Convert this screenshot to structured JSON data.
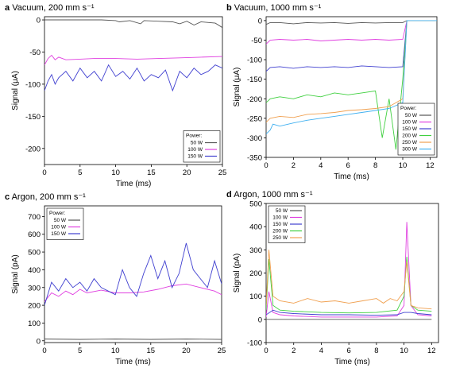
{
  "figure": {
    "background": "#ffffff",
    "axis_color": "#000000"
  },
  "chart_data": [
    {
      "panel": "a",
      "type": "line",
      "title": "Vacuum, 200 mm s⁻¹",
      "xlabel": "Time (ms)",
      "ylabel": "Signal (μA)",
      "xlim": [
        0,
        25
      ],
      "ylim": [
        -225,
        5
      ],
      "xticks": [
        0,
        5,
        10,
        15,
        20,
        25
      ],
      "yticks": [
        0,
        -50,
        -100,
        -150,
        -200
      ],
      "xticklabels": [
        "0",
        "5",
        "10",
        "15",
        "20",
        "25"
      ],
      "yticklabels": [
        "0",
        "-50",
        "-100",
        "-150",
        "-200"
      ],
      "legend": {
        "title": "Power:",
        "location": "bottom-right"
      },
      "series": [
        {
          "name": "50 W",
          "color": "#555555",
          "x": [
            0,
            8,
            10,
            10.5,
            12,
            13.5,
            14,
            16,
            18,
            19,
            20,
            21,
            22,
            24,
            25
          ],
          "y": [
            0,
            0,
            -1,
            -3,
            -1,
            -6,
            -1,
            -2,
            -3,
            -6,
            -2,
            -8,
            -3,
            -5,
            -12
          ]
        },
        {
          "name": "100 W",
          "color": "#e040e0",
          "x": [
            0,
            0.5,
            1,
            1.5,
            2,
            3,
            5,
            7,
            10,
            13,
            16,
            19,
            22,
            25
          ],
          "y": [
            -70,
            -60,
            -55,
            -62,
            -58,
            -62,
            -61,
            -60,
            -60,
            -61,
            -60,
            -59,
            -58,
            -57
          ]
        },
        {
          "name": "150 W",
          "color": "#4040d0",
          "x": [
            0,
            0.5,
            1,
            1.5,
            2,
            3,
            4,
            5,
            6,
            7,
            8,
            9,
            10,
            11,
            12,
            13,
            14,
            15,
            16,
            17,
            18,
            19,
            20,
            21,
            22,
            23,
            24,
            25
          ],
          "y": [
            -110,
            -95,
            -85,
            -100,
            -90,
            -80,
            -95,
            -75,
            -90,
            -80,
            -95,
            -70,
            -88,
            -80,
            -92,
            -75,
            -95,
            -85,
            -90,
            -78,
            -110,
            -80,
            -90,
            -75,
            -85,
            -80,
            -70,
            -75
          ]
        }
      ]
    },
    {
      "panel": "b",
      "type": "line",
      "title": "Vacuum, 1000 mm s⁻¹",
      "xlabel": "Time (ms)",
      "ylabel": "Signal (μA)",
      "xlim": [
        0,
        12.5
      ],
      "ylim": [
        -350,
        10
      ],
      "xticks": [
        0,
        2,
        4,
        6,
        8,
        10,
        12
      ],
      "yticks": [
        0,
        -50,
        -100,
        -150,
        -200,
        -250,
        -300,
        -350
      ],
      "xticklabels": [
        "0",
        "2",
        "4",
        "6",
        "8",
        "10",
        "12"
      ],
      "yticklabels": [
        "0",
        "-50",
        "-100",
        "-150",
        "-200",
        "-250",
        "-300",
        "-350"
      ],
      "legend": {
        "title": "Power:",
        "location": "bottom-right"
      },
      "series": [
        {
          "name": "50 W",
          "color": "#555555",
          "x": [
            0,
            0.3,
            1,
            2,
            3,
            4,
            5,
            6,
            7,
            8,
            9,
            10,
            10.3,
            12.5
          ],
          "y": [
            -10,
            -5,
            -5,
            -8,
            -5,
            -6,
            -5,
            -7,
            -5,
            -6,
            -5,
            -5,
            0,
            0
          ]
        },
        {
          "name": "100 W",
          "color": "#e040e0",
          "x": [
            0,
            0.3,
            1,
            2,
            3,
            4,
            5,
            6,
            7,
            8,
            9,
            10,
            10.3,
            12.5
          ],
          "y": [
            -60,
            -50,
            -48,
            -50,
            -48,
            -52,
            -50,
            -48,
            -50,
            -48,
            -50,
            -48,
            0,
            0
          ]
        },
        {
          "name": "150 W",
          "color": "#4040d0",
          "x": [
            0,
            0.3,
            1,
            2,
            3,
            4,
            5,
            6,
            7,
            8,
            9,
            10,
            10.3,
            12.5
          ],
          "y": [
            -130,
            -120,
            -118,
            -122,
            -118,
            -120,
            -118,
            -120,
            -116,
            -118,
            -120,
            -118,
            0,
            0
          ]
        },
        {
          "name": "200 W",
          "color": "#40d040",
          "x": [
            0,
            0.3,
            1,
            2,
            3,
            4,
            5,
            6,
            7,
            8,
            8.5,
            9,
            9.5,
            10,
            10.3,
            12.5
          ],
          "y": [
            -210,
            -200,
            -195,
            -200,
            -190,
            -195,
            -185,
            -190,
            -185,
            -180,
            -300,
            -200,
            -330,
            -150,
            0,
            0
          ]
        },
        {
          "name": "250 W",
          "color": "#f0a050",
          "x": [
            0,
            0.3,
            1,
            2,
            3,
            4,
            5,
            6,
            7,
            8,
            9,
            10,
            10.3,
            12.5
          ],
          "y": [
            -260,
            -250,
            -245,
            -248,
            -240,
            -238,
            -235,
            -230,
            -228,
            -225,
            -220,
            -200,
            0,
            0
          ]
        },
        {
          "name": "300 W",
          "color": "#40b0f0",
          "x": [
            0,
            0.3,
            0.5,
            1,
            2,
            3,
            4,
            5,
            6,
            7,
            8,
            9,
            10,
            10.3,
            12.5
          ],
          "y": [
            -290,
            -280,
            -265,
            -270,
            -262,
            -255,
            -250,
            -245,
            -240,
            -235,
            -230,
            -225,
            -210,
            0,
            0
          ]
        }
      ]
    },
    {
      "panel": "c",
      "type": "line",
      "title": "Argon, 200 mm s⁻¹",
      "xlabel": "Time (ms)",
      "ylabel": "Signal (pA)",
      "xlim": [
        0,
        25
      ],
      "ylim": [
        -10,
        760
      ],
      "xticks": [
        0,
        5,
        10,
        15,
        20,
        25
      ],
      "yticks": [
        0,
        100,
        200,
        300,
        400,
        500,
        600,
        700
      ],
      "xticklabels": [
        "0",
        "5",
        "10",
        "15",
        "20",
        "25"
      ],
      "yticklabels": [
        "0",
        "100",
        "200",
        "300",
        "400",
        "500",
        "600",
        "700"
      ],
      "legend": {
        "title": "Power:",
        "location": "top-left"
      },
      "series": [
        {
          "name": "50 W",
          "color": "#555555",
          "x": [
            0,
            5,
            10,
            15,
            20,
            25
          ],
          "y": [
            10,
            8,
            10,
            8,
            10,
            8
          ]
        },
        {
          "name": "100 W",
          "color": "#e040e0",
          "x": [
            0,
            1,
            2,
            3,
            4,
            5,
            6,
            8,
            10,
            12,
            14,
            16,
            18,
            20,
            22,
            24,
            25
          ],
          "y": [
            220,
            270,
            250,
            280,
            260,
            290,
            270,
            285,
            270,
            270,
            275,
            290,
            310,
            320,
            300,
            280,
            260
          ]
        },
        {
          "name": "150 W",
          "color": "#4040d0",
          "x": [
            0,
            1,
            2,
            3,
            4,
            5,
            6,
            7,
            8,
            9,
            10,
            11,
            12,
            13,
            14,
            15,
            16,
            17,
            18,
            19,
            20,
            21,
            22,
            23,
            24,
            25
          ],
          "y": [
            200,
            330,
            280,
            350,
            300,
            330,
            280,
            350,
            300,
            280,
            260,
            400,
            300,
            250,
            380,
            480,
            350,
            450,
            300,
            380,
            550,
            400,
            350,
            300,
            450,
            320
          ]
        }
      ]
    },
    {
      "panel": "d",
      "type": "line",
      "title": "Argon, 1000 mm s⁻¹",
      "xlabel": "Time (ms)",
      "ylabel": "Signal (pA)",
      "xlim": [
        0,
        12.5
      ],
      "ylim": [
        -100,
        500
      ],
      "xticks": [
        0,
        2,
        4,
        6,
        8,
        10,
        12
      ],
      "yticks": [
        500,
        400,
        300,
        200,
        100,
        0,
        -100
      ],
      "xticklabels": [
        "0",
        "2",
        "4",
        "6",
        "8",
        "10",
        "12"
      ],
      "yticklabels": [
        "500",
        "400",
        "300",
        "200",
        "100",
        "0",
        "-100"
      ],
      "legend": {
        "title": "",
        "location": "top-left"
      },
      "series": [
        {
          "name": "50 W",
          "color": "#555555",
          "x": [
            0,
            2,
            4,
            6,
            8,
            10,
            12
          ],
          "y": [
            0,
            0,
            0,
            0,
            0,
            0,
            0
          ]
        },
        {
          "name": "100 W",
          "color": "#e040e0",
          "x": [
            0,
            0.2,
            0.5,
            1,
            2,
            4,
            6,
            8,
            9.5,
            10,
            10.2,
            10.5,
            11,
            12
          ],
          "y": [
            10,
            120,
            30,
            20,
            15,
            10,
            10,
            10,
            15,
            60,
            420,
            60,
            20,
            15
          ]
        },
        {
          "name": "150 W",
          "color": "#4040d0",
          "x": [
            0,
            0.5,
            1,
            2,
            4,
            6,
            8,
            9.5,
            10,
            10.5,
            11,
            12
          ],
          "y": [
            20,
            40,
            30,
            25,
            20,
            20,
            18,
            20,
            30,
            30,
            25,
            20
          ]
        },
        {
          "name": "200 W",
          "color": "#40d040",
          "x": [
            0,
            0.2,
            0.5,
            1,
            2,
            4,
            6,
            8,
            9.5,
            10,
            10.2,
            10.5,
            11,
            12
          ],
          "y": [
            40,
            260,
            60,
            40,
            35,
            30,
            28,
            30,
            40,
            100,
            270,
            60,
            40,
            35
          ]
        },
        {
          "name": "250 W",
          "color": "#f0a050",
          "x": [
            0,
            0.2,
            0.5,
            1,
            2,
            3,
            4,
            5,
            6,
            7,
            8,
            8.5,
            9,
            9.5,
            10,
            10.2,
            10.5,
            11,
            12
          ],
          "y": [
            60,
            300,
            100,
            80,
            70,
            90,
            75,
            80,
            70,
            80,
            90,
            70,
            90,
            80,
            120,
            250,
            60,
            50,
            45
          ]
        }
      ]
    }
  ]
}
